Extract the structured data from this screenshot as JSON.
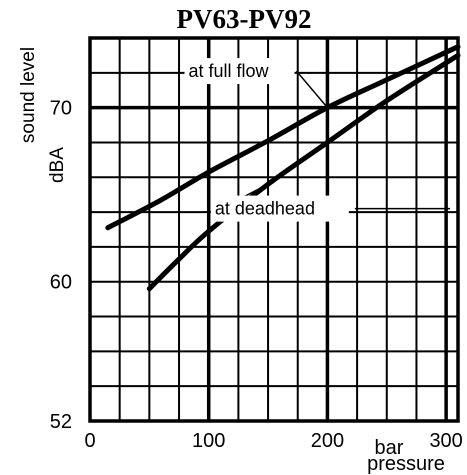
{
  "chart_data": {
    "type": "line",
    "title": "PV63-PV92",
    "xlabel_unit": "bar",
    "xlabel": "pressure",
    "ylabel": "sound level",
    "ylabel_unit": "dBA",
    "xlim": [
      0,
      310
    ],
    "ylim": [
      52,
      74
    ],
    "x_ticks": [
      {
        "value": 0,
        "label": "0"
      },
      {
        "value": 100,
        "label": "100"
      },
      {
        "value": 200,
        "label": "200"
      },
      {
        "value": 300,
        "label": "300"
      }
    ],
    "y_ticks": [
      {
        "value": 52,
        "label": "52"
      },
      {
        "value": 60,
        "label": "60"
      },
      {
        "value": 70,
        "label": "70"
      }
    ],
    "grid": true,
    "series": [
      {
        "name": "at full flow",
        "points": [
          {
            "x": 15,
            "y": 63.1
          },
          {
            "x": 60,
            "y": 64.7
          },
          {
            "x": 100,
            "y": 66.3
          },
          {
            "x": 150,
            "y": 68.1
          },
          {
            "x": 200,
            "y": 70.0
          },
          {
            "x": 250,
            "y": 71.6
          },
          {
            "x": 310,
            "y": 73.5
          }
        ],
        "annotation": {
          "x": 131,
          "y": 72.1
        }
      },
      {
        "name": "at deadhead",
        "points": [
          {
            "x": 50,
            "y": 59.6
          },
          {
            "x": 75,
            "y": 61.3
          },
          {
            "x": 100,
            "y": 62.9
          },
          {
            "x": 150,
            "y": 65.6
          },
          {
            "x": 200,
            "y": 68.0
          },
          {
            "x": 250,
            "y": 70.4
          },
          {
            "x": 310,
            "y": 73.0
          }
        ],
        "annotation": {
          "x": 165,
          "y": 64.2
        }
      }
    ]
  }
}
